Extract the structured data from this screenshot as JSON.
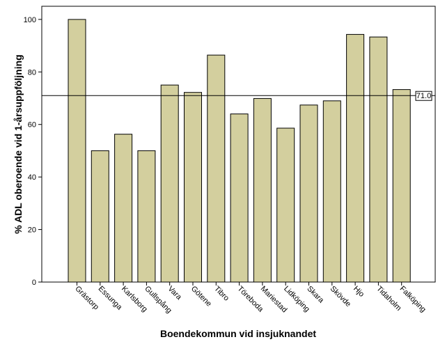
{
  "chart_data": {
    "type": "bar",
    "categories": [
      "Grästorp",
      "Essunga",
      "Karlsborg",
      "Gullspång",
      "Vara",
      "Götene",
      "Tibro",
      "Töreboda",
      "Mariestad",
      "Lidköping",
      "Skara",
      "Skövde",
      "Hjo",
      "Tidaholm",
      "Falköping"
    ],
    "values": [
      100,
      50,
      56.3,
      50,
      75,
      72.2,
      86.4,
      64,
      69.9,
      58.6,
      67.4,
      69,
      94.3,
      93.3,
      73.3
    ],
    "xlabel": "Boendekommun vid insjuknandet",
    "ylabel": "% ADL oberoende vid 1-årsuppföljning",
    "ylim": [
      0,
      105
    ],
    "yticks": [
      0,
      20,
      40,
      60,
      80,
      100
    ],
    "reference_line": {
      "value": 71.0,
      "label": "71.0"
    },
    "grid": false,
    "colors": {
      "bar_fill": "#d3cf9e",
      "bar_stroke": "#000000",
      "plot_background": "#ffffff",
      "reference_line": "#000000"
    }
  }
}
